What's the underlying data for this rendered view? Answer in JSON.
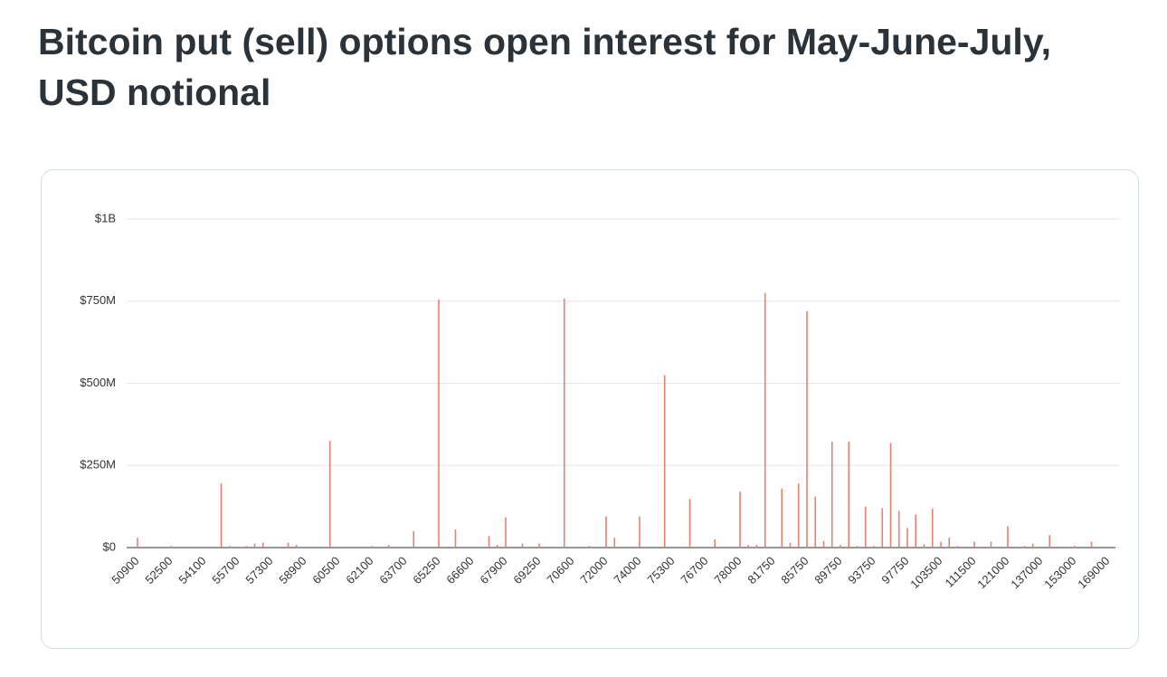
{
  "chart_data": {
    "type": "bar",
    "title": "Bitcoin put (sell) options open interest for May-June-July, USD notional",
    "categories": [
      "50900",
      null,
      null,
      null,
      "52500",
      null,
      null,
      null,
      "54100",
      null,
      null,
      null,
      "55700",
      null,
      null,
      null,
      "57300",
      null,
      null,
      null,
      "58900",
      null,
      null,
      null,
      "60500",
      null,
      null,
      null,
      "62100",
      null,
      null,
      null,
      "63700",
      null,
      null,
      null,
      "65250",
      null,
      null,
      null,
      "66600",
      null,
      null,
      null,
      "67900",
      null,
      null,
      null,
      "69250",
      null,
      null,
      null,
      "70600",
      null,
      null,
      null,
      "72000",
      null,
      null,
      null,
      "74000",
      null,
      null,
      null,
      "75300",
      null,
      null,
      null,
      "76700",
      null,
      null,
      null,
      "78000",
      null,
      null,
      null,
      "81750",
      null,
      null,
      null,
      "85750",
      null,
      null,
      null,
      "89750",
      null,
      null,
      null,
      "93750",
      null,
      null,
      null,
      "97750",
      null,
      null,
      null,
      "103500",
      null,
      null,
      null,
      "111500",
      null,
      null,
      null,
      "121000",
      null,
      null,
      null,
      "137000",
      null,
      null,
      null,
      "153000",
      null,
      null,
      null,
      "169000"
    ],
    "values": [
      30000000,
      0,
      0,
      0,
      5000000,
      0,
      0,
      0,
      0,
      0,
      195000000,
      5000000,
      0,
      5000000,
      12000000,
      15000000,
      0,
      0,
      15000000,
      8000000,
      0,
      0,
      0,
      325000000,
      0,
      0,
      0,
      0,
      5000000,
      0,
      8000000,
      0,
      0,
      50000000,
      0,
      0,
      755000000,
      0,
      55000000,
      0,
      0,
      0,
      35000000,
      8000000,
      92000000,
      0,
      12000000,
      0,
      12000000,
      0,
      0,
      758000000,
      0,
      0,
      5000000,
      0,
      95000000,
      30000000,
      0,
      0,
      95000000,
      0,
      0,
      525000000,
      0,
      0,
      148000000,
      0,
      0,
      25000000,
      0,
      0,
      170000000,
      8000000,
      8000000,
      775000000,
      0,
      180000000,
      15000000,
      195000000,
      720000000,
      155000000,
      20000000,
      322000000,
      8000000,
      322000000,
      5000000,
      125000000,
      5000000,
      120000000,
      318000000,
      112000000,
      60000000,
      100000000,
      10000000,
      118000000,
      18000000,
      30000000,
      5000000,
      0,
      18000000,
      0,
      18000000,
      0,
      65000000,
      0,
      5000000,
      12000000,
      0,
      38000000,
      0,
      0,
      5000000,
      0,
      18000000,
      0,
      0
    ],
    "color": "#e8826f",
    "ylim": [
      0,
      1000000000
    ],
    "yticks": [
      {
        "value": 0,
        "label": "$0"
      },
      {
        "value": 250000000,
        "label": "$250M"
      },
      {
        "value": 500000000,
        "label": "$500M"
      },
      {
        "value": 750000000,
        "label": "$750M"
      },
      {
        "value": 1000000000,
        "label": "$1B"
      }
    ],
    "grid": true
  }
}
